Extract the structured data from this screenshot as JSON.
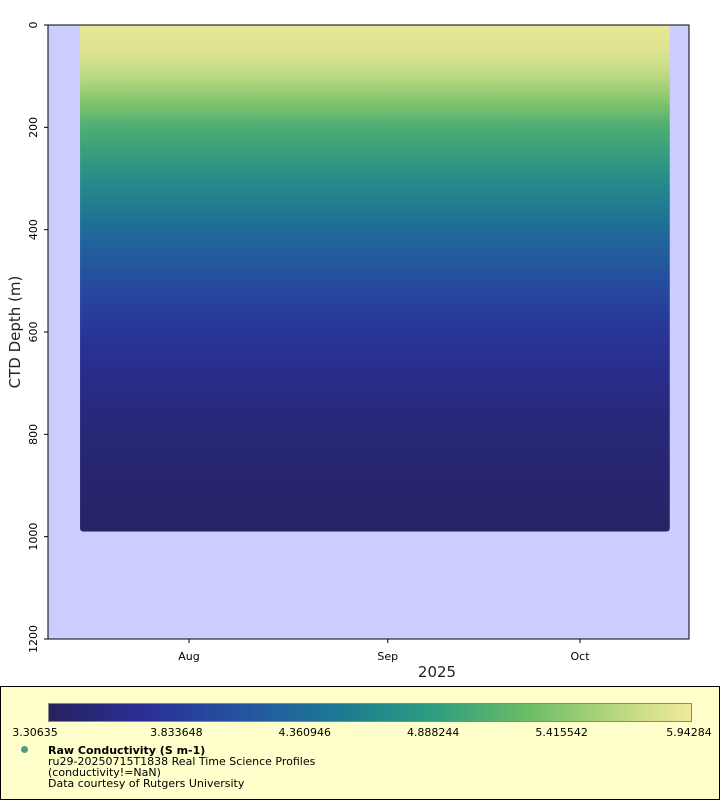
{
  "chart_data": {
    "type": "heatmap",
    "title": "",
    "xlabel": "2025",
    "ylabel": "CTD Depth (m)",
    "x_ticks": [
      "Aug",
      "Sep",
      "Oct"
    ],
    "x_range": [
      "2025-07-10",
      "2025-10-18"
    ],
    "data_x_range": [
      "2025-07-15",
      "2025-10-15"
    ],
    "y_ticks": [
      0,
      200,
      400,
      600,
      800,
      1000,
      1200
    ],
    "ylim": [
      1200,
      0
    ],
    "y_inverted": true,
    "grid": false,
    "background_color": "#ccccff",
    "colorscale": {
      "min": 3.30635,
      "max": 5.94284,
      "tick_labels": [
        "3.30635",
        "3.833648",
        "4.360946",
        "4.888244",
        "5.415542",
        "5.94284"
      ],
      "colors": [
        "#27225f",
        "#2a2f96",
        "#2553a1",
        "#1b7a94",
        "#2e9e7f",
        "#6dbd66",
        "#b6d77e",
        "#f2ea9a"
      ]
    },
    "max_profile_depth": 990,
    "depth_profile": [
      {
        "depth": 0,
        "value": 5.88
      },
      {
        "depth": 50,
        "value": 5.82
      },
      {
        "depth": 100,
        "value": 5.6
      },
      {
        "depth": 150,
        "value": 5.3
      },
      {
        "depth": 200,
        "value": 5.0
      },
      {
        "depth": 300,
        "value": 4.65
      },
      {
        "depth": 400,
        "value": 4.3
      },
      {
        "depth": 500,
        "value": 4.0
      },
      {
        "depth": 600,
        "value": 3.75
      },
      {
        "depth": 700,
        "value": 3.58
      },
      {
        "depth": 800,
        "value": 3.47
      },
      {
        "depth": 900,
        "value": 3.4
      },
      {
        "depth": 990,
        "value": 3.35
      }
    ]
  },
  "legend": {
    "variable": "Raw Conductivity (S m-1)",
    "dataset": "ru29-20250715T1838 Real Time Science Profiles",
    "constraint": "(conductivity!=NaN)",
    "credit": "Data courtesy of Rutgers University"
  }
}
